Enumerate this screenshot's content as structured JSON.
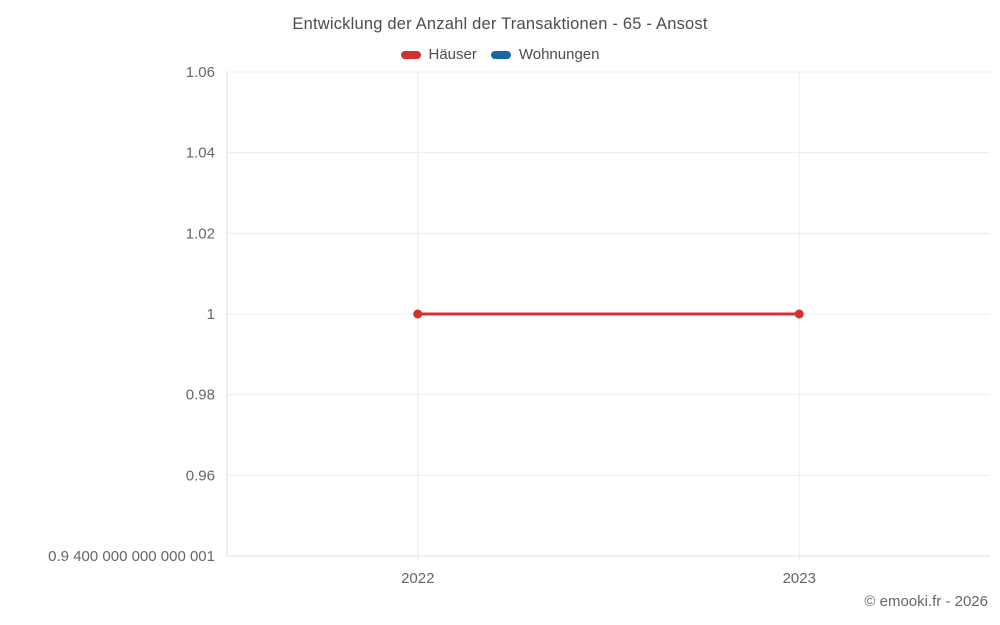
{
  "title": "Entwicklung der Anzahl der Transaktionen - 65 - Ansost",
  "legend": {
    "items": [
      {
        "label": "Häuser",
        "color": "#d32f2f"
      },
      {
        "label": "Wohnungen",
        "color": "#1569a0"
      }
    ]
  },
  "footer": {
    "credit": "© emooki.fr - 2026"
  },
  "colors": {
    "grid": "#ececec",
    "axis": "#e0e0e0",
    "tick_text": "#666666",
    "title_text": "#4d4d4d",
    "series_red": "#d32f2f",
    "series_blue": "#1569a0"
  },
  "chart_data": {
    "type": "line",
    "title": "Entwicklung der Anzahl der Transaktionen - 65 - Ansost",
    "categories": [
      "2022",
      "2023"
    ],
    "series": [
      {
        "name": "Häuser",
        "color": "#d32f2f",
        "values": [
          1,
          1
        ]
      },
      {
        "name": "Wohnungen",
        "color": "#1569a0",
        "values": []
      }
    ],
    "ylim": [
      0.9400000000000001,
      1.06
    ],
    "yticks": [
      {
        "value": 1.06,
        "label": "1.06"
      },
      {
        "value": 1.04,
        "label": "1.04"
      },
      {
        "value": 1.02,
        "label": "1.02"
      },
      {
        "value": 1,
        "label": "1"
      },
      {
        "value": 0.98,
        "label": "0.98"
      },
      {
        "value": 0.96,
        "label": "0.96"
      },
      {
        "value": 0.9400000000000001,
        "label": "0.9 400 000 000 000 001"
      }
    ],
    "grid": true,
    "legend_position": "top",
    "xlabel": "",
    "ylabel": ""
  }
}
